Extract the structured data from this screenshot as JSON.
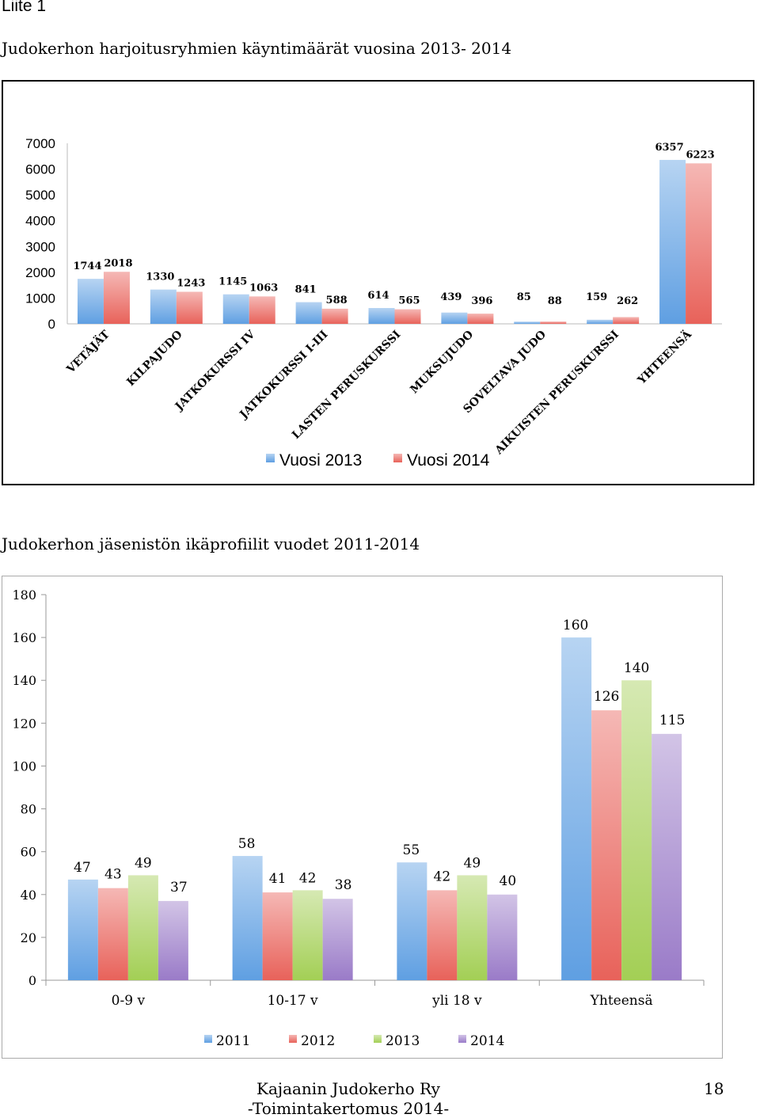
{
  "header": {
    "appendix": "Liite 1",
    "title1": "Judokerhon harjoitusryhmien käyntimäärät vuosina 2013- 2014",
    "title2": "Judokerhon jäsenistön ikäprofiilit vuodet 2011-2014"
  },
  "footer": {
    "line1": "Kajaanin Judokerho Ry",
    "line2": "-Toimintakertomus 2014-",
    "page": "18"
  },
  "colors": {
    "blue": "#5f9fe2",
    "red": "#e8625a",
    "green": "#a3cf55",
    "purple": "#9a7bc8"
  },
  "chart_data": [
    {
      "type": "bar",
      "title": "",
      "categories": [
        "VETÄJÄT",
        "KILPAJUDO",
        "JATKOKURSSI IV",
        "JATKOKURSSI I-III",
        "LASTEN PERUSKURSSI",
        "MUKSUJUDO",
        "SOVELTAVA JUDO",
        "AIKUISTEN PERUSKURSSI",
        "YHTEENSÄ"
      ],
      "series": [
        {
          "name": "Vuosi 2013",
          "values": [
            1744,
            1330,
            1145,
            841,
            614,
            439,
            85,
            159,
            6357
          ]
        },
        {
          "name": "Vuosi 2014",
          "values": [
            2018,
            1243,
            1063,
            588,
            565,
            396,
            88,
            262,
            6223
          ]
        }
      ],
      "yticks": [
        "7000",
        "6000",
        "5000",
        "4000",
        "3000",
        "2000",
        "1000",
        "0"
      ],
      "ylim": [
        0,
        7000
      ],
      "grid": false,
      "legend": "bottom"
    },
    {
      "type": "bar",
      "title": "",
      "categories": [
        "0-9 v",
        "10-17 v",
        "yli 18 v",
        "Yhteensä"
      ],
      "series": [
        {
          "name": "2011",
          "values": [
            47,
            58,
            55,
            160
          ]
        },
        {
          "name": "2012",
          "values": [
            43,
            41,
            42,
            126
          ]
        },
        {
          "name": "2013",
          "values": [
            49,
            42,
            49,
            140
          ]
        },
        {
          "name": "2014",
          "values": [
            37,
            38,
            40,
            115
          ]
        }
      ],
      "yticks": [
        "180",
        "160",
        "140",
        "120",
        "100",
        "80",
        "60",
        "40",
        "20",
        "0"
      ],
      "ylim": [
        0,
        180
      ],
      "grid": false,
      "legend": "bottom"
    }
  ]
}
